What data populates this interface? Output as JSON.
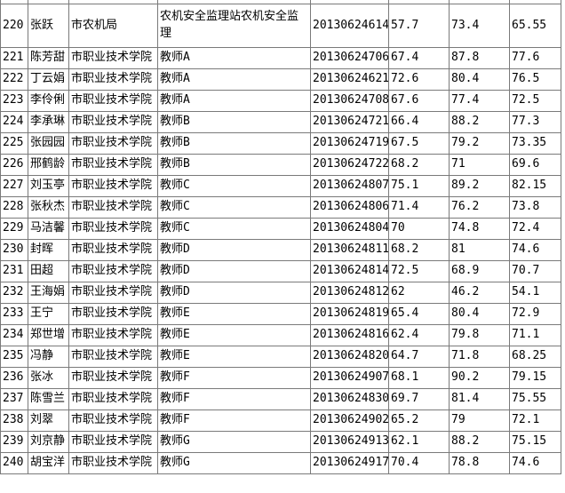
{
  "colors": {
    "background": "#ffffff",
    "gridline": "#7a7a7a",
    "text": "#000000"
  },
  "table": {
    "columns": [
      "row-number",
      "name",
      "organization",
      "position",
      "exam-id",
      "score-1",
      "score-2",
      "score-3"
    ],
    "rows": [
      [
        "220",
        "张跃",
        "市农机局",
        "农机安全监理站农机安全监理",
        "20130624614",
        "57.7",
        "73.4",
        "65.55"
      ],
      [
        "221",
        "陈芳甜",
        "市职业技术学院",
        "教师A",
        "20130624706",
        "67.4",
        "87.8",
        "77.6"
      ],
      [
        "222",
        "丁云娟",
        "市职业技术学院",
        "教师A",
        "20130624621",
        "72.6",
        "80.4",
        "76.5"
      ],
      [
        "223",
        "李伶俐",
        "市职业技术学院",
        "教师A",
        "20130624708",
        "67.6",
        "77.4",
        "72.5"
      ],
      [
        "224",
        "李承琳",
        "市职业技术学院",
        "教师B",
        "20130624721",
        "66.4",
        "88.2",
        "77.3"
      ],
      [
        "225",
        "张园园",
        "市职业技术学院",
        "教师B",
        "20130624719",
        "67.5",
        "79.2",
        "73.35"
      ],
      [
        "226",
        "邢鹤龄",
        "市职业技术学院",
        "教师B",
        "20130624722",
        "68.2",
        "71",
        "69.6"
      ],
      [
        "227",
        "刘玉亭",
        "市职业技术学院",
        "教师C",
        "20130624807",
        "75.1",
        "89.2",
        "82.15"
      ],
      [
        "228",
        "张秋杰",
        "市职业技术学院",
        "教师C",
        "20130624806",
        "71.4",
        "76.2",
        "73.8"
      ],
      [
        "229",
        "马洁馨",
        "市职业技术学院",
        "教师C",
        "20130624804",
        "70",
        "74.8",
        "72.4"
      ],
      [
        "230",
        "封晖",
        "市职业技术学院",
        "教师D",
        "20130624811",
        "68.2",
        "81",
        "74.6"
      ],
      [
        "231",
        "田超",
        "市职业技术学院",
        "教师D",
        "20130624814",
        "72.5",
        "68.9",
        "70.7"
      ],
      [
        "232",
        "王海娟",
        "市职业技术学院",
        "教师D",
        "20130624812",
        "62",
        "46.2",
        "54.1"
      ],
      [
        "233",
        "王宁",
        "市职业技术学院",
        "教师E",
        "20130624819",
        "65.4",
        "80.4",
        "72.9"
      ],
      [
        "234",
        "郑世增",
        "市职业技术学院",
        "教师E",
        "20130624816",
        "62.4",
        "79.8",
        "71.1"
      ],
      [
        "235",
        "冯静",
        "市职业技术学院",
        "教师E",
        "20130624820",
        "64.7",
        "71.8",
        "68.25"
      ],
      [
        "236",
        "张冰",
        "市职业技术学院",
        "教师F",
        "20130624907",
        "68.1",
        "90.2",
        "79.15"
      ],
      [
        "237",
        "陈雪兰",
        "市职业技术学院",
        "教师F",
        "20130624830",
        "69.7",
        "81.4",
        "75.55"
      ],
      [
        "238",
        "刘翠",
        "市职业技术学院",
        "教师F",
        "20130624902",
        "65.2",
        "79",
        "72.1"
      ],
      [
        "239",
        "刘京静",
        "市职业技术学院",
        "教师G",
        "20130624913",
        "62.1",
        "88.2",
        "75.15"
      ],
      [
        "240",
        "胡宝洋",
        "市职业技术学院",
        "教师G",
        "20130624917",
        "70.4",
        "78.8",
        "74.6"
      ]
    ]
  }
}
